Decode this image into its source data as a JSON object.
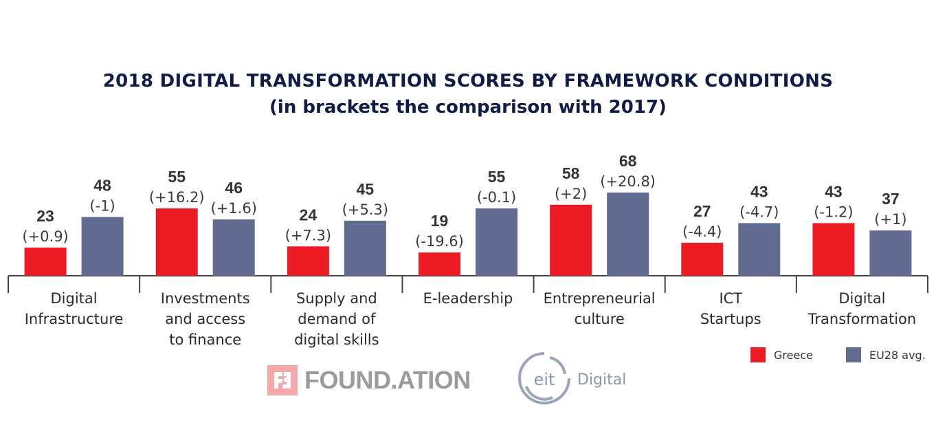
{
  "title": {
    "line1": "2018 DIGITAL TRANSFORMATION SCORES BY FRAMEWORK CONDITIONS",
    "line2": "(in brackets the comparison with 2017)"
  },
  "colors": {
    "greece": "#ed1c24",
    "eu": "#626b91",
    "title": "#111b47",
    "axis": "#444444"
  },
  "chart_data": {
    "type": "bar",
    "title": "2018 DIGITAL TRANSFORMATION SCORES BY FRAMEWORK CONDITIONS",
    "subtitle": "(in brackets the comparison with 2017)",
    "xlabel": "",
    "ylabel": "",
    "ylim": [
      0,
      100
    ],
    "grid": false,
    "legend_position": "bottom-right",
    "categories": [
      [
        "Digital",
        "Infrastructure"
      ],
      [
        "Investments",
        "and access",
        "to finance"
      ],
      [
        "Supply and",
        "demand of",
        "digital skills"
      ],
      [
        "E-leadership"
      ],
      [
        "Entrepreneurial",
        "culture"
      ],
      [
        "ICT",
        "Startups"
      ],
      [
        "Digital",
        "Transformation"
      ]
    ],
    "series": [
      {
        "name": "Greece",
        "values": [
          23,
          55,
          24,
          19,
          58,
          27,
          43
        ],
        "change_vs_2017": [
          "(+0.9)",
          "(+16.2)",
          "(+7.3)",
          "(-19.6)",
          "(+2)",
          "(-4.4)",
          "(-1.2)"
        ]
      },
      {
        "name": "EU28 avg.",
        "values": [
          48,
          46,
          45,
          55,
          68,
          43,
          37
        ],
        "change_vs_2017": [
          "(-1)",
          "(+1.6)",
          "(+5.3)",
          "(-0.1)",
          "(+20.8)",
          "(-4.7)",
          "(+1)"
        ]
      }
    ]
  },
  "legend": {
    "greece": "Greece",
    "eu": "EU28 avg."
  },
  "logos": {
    "foundation": "FOUND.ATION",
    "eit_mark": "eit",
    "eit_text": "Digital"
  }
}
